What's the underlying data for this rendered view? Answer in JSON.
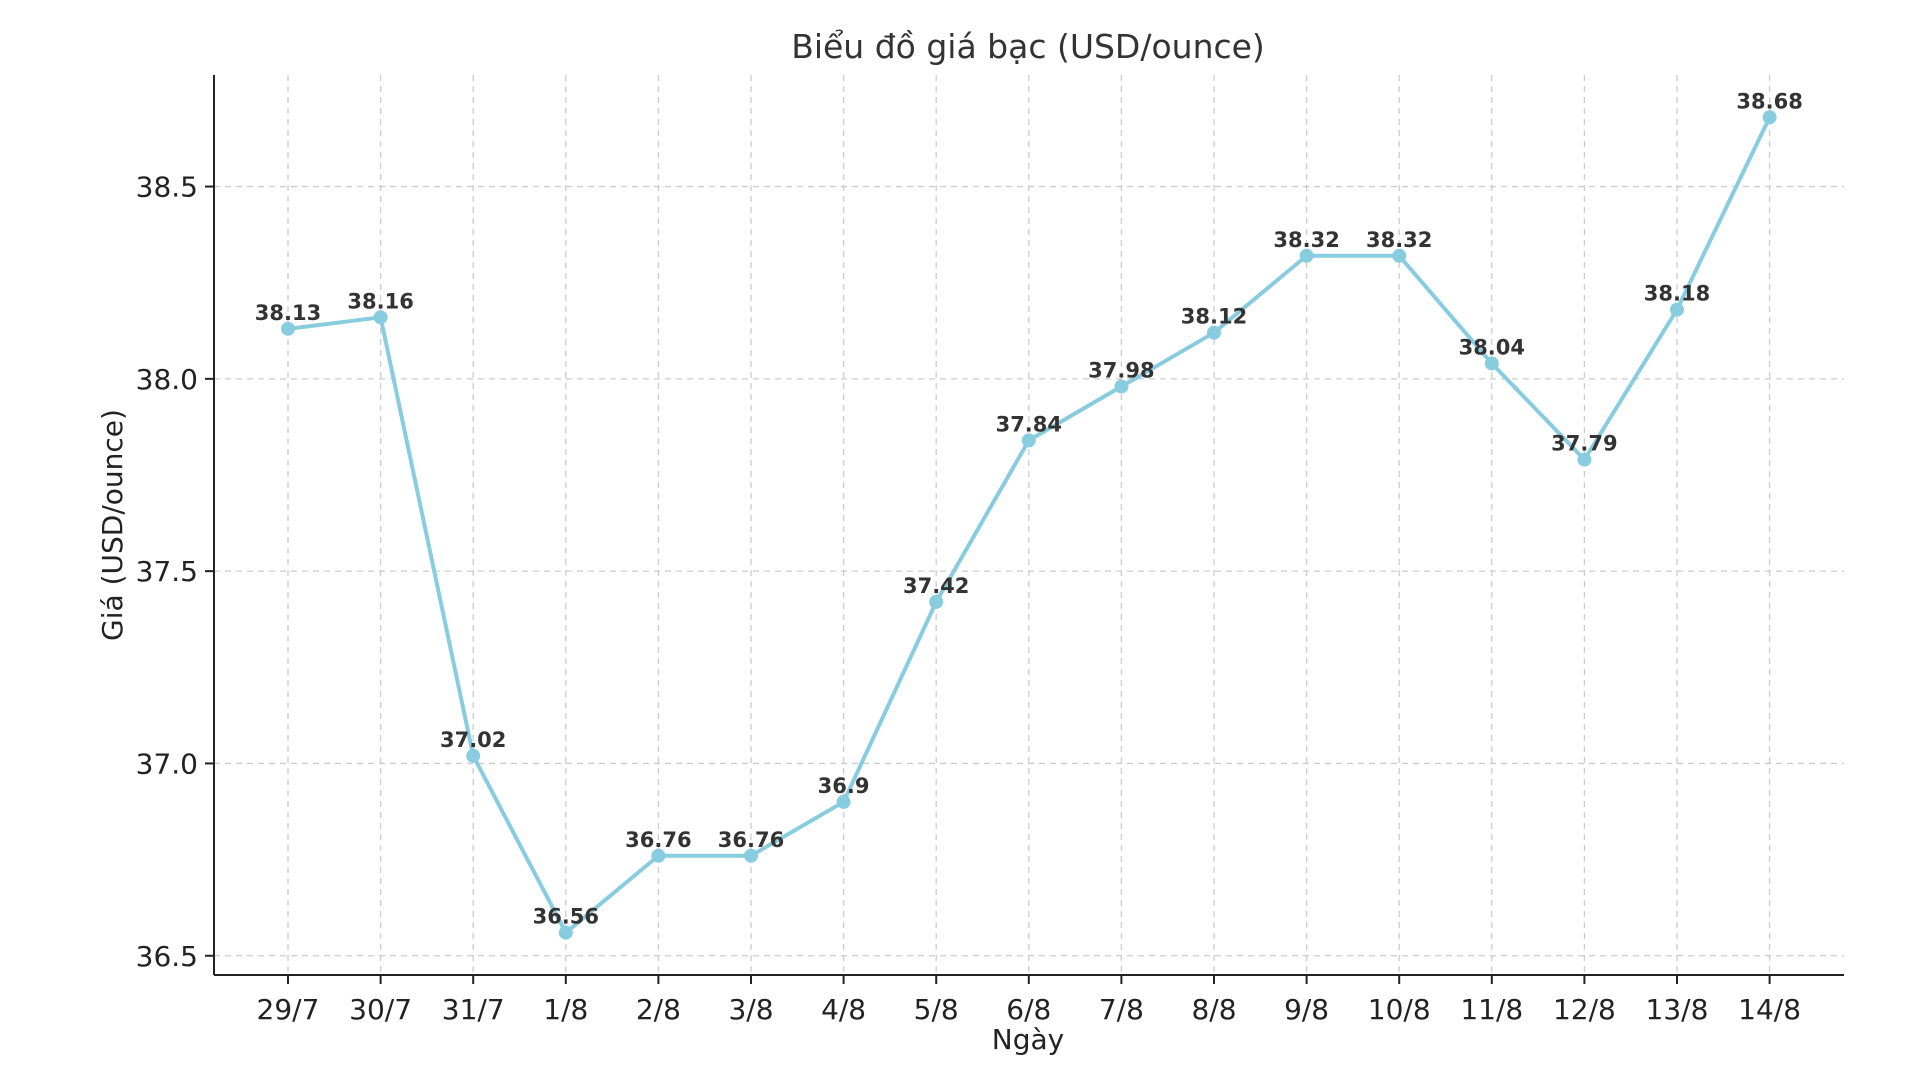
{
  "chart_data": {
    "type": "line",
    "title": "Biểu đồ giá bạc (USD/ounce)",
    "xlabel": "Ngày",
    "ylabel": "Giá (USD/ounce)",
    "categories": [
      "29/7",
      "30/7",
      "31/7",
      "1/8",
      "2/8",
      "3/8",
      "4/8",
      "5/8",
      "6/8",
      "7/8",
      "8/8",
      "9/8",
      "10/8",
      "11/8",
      "12/8",
      "13/8",
      "14/8"
    ],
    "series": [
      {
        "values": [
          38.13,
          38.16,
          37.02,
          36.56,
          36.76,
          36.76,
          36.9,
          37.42,
          37.84,
          37.98,
          38.12,
          38.32,
          38.32,
          38.04,
          37.79,
          38.18,
          38.68
        ],
        "labels": [
          "38.13",
          "38.16",
          "37.02",
          "36.56",
          "36.76",
          "36.76",
          "36.9",
          "37.42",
          "37.84",
          "37.98",
          "38.12",
          "38.32",
          "38.32",
          "38.04",
          "37.79",
          "38.18",
          "38.68"
        ],
        "color": "#88cce0"
      }
    ],
    "ylim": [
      36.45,
      38.79
    ],
    "yticks": [
      36.5,
      37.0,
      37.5,
      38.0,
      38.5
    ],
    "ytick_labels": [
      "36.5",
      "37.0",
      "37.5",
      "38.0",
      "38.5"
    ],
    "grid": true,
    "legend": "none"
  }
}
